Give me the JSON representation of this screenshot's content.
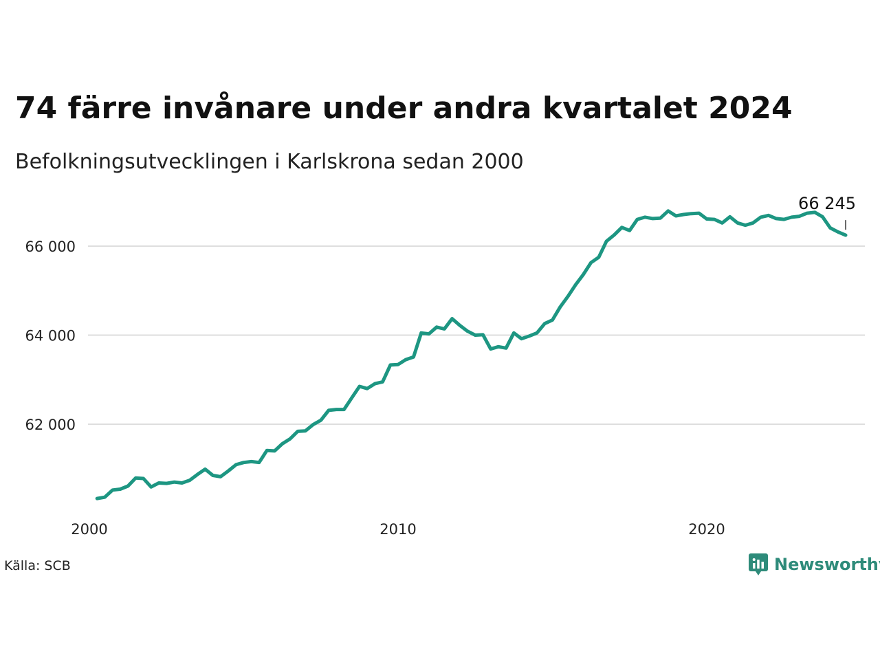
{
  "title": "74 färre invånare under andra kvartalet 2024",
  "subtitle": "Befolkningsutvecklingen i Karlskrona sedan 2000",
  "source": "Källa: SCB",
  "brand": {
    "name": "Newsworthy",
    "icon": "newsworthy-logo-icon",
    "color": "#2e8b7a"
  },
  "chart_data": {
    "type": "line",
    "title": "74 färre invånare under andra kvartalet 2024",
    "subtitle": "Befolkningsutvecklingen i Karlskrona sedan 2000",
    "xlabel": "",
    "ylabel": "",
    "x_ticks": [
      {
        "value": 2000,
        "label": "2000"
      },
      {
        "value": 2010,
        "label": "2010"
      },
      {
        "value": 2020,
        "label": "2020"
      }
    ],
    "y_ticks": [
      {
        "value": 62000,
        "label": "62 000"
      },
      {
        "value": 64000,
        "label": "64 000"
      },
      {
        "value": 66000,
        "label": "66 000"
      }
    ],
    "xlim": [
      2000,
      2025.2
    ],
    "ylim": [
      59800,
      67000
    ],
    "grid": "horizontal",
    "line_color": "#1d9682",
    "end_label": {
      "text": "66 245",
      "value": 66245
    },
    "series": [
      {
        "values": [
          [
            2000.25,
            60330
          ],
          [
            2000.5,
            60360
          ],
          [
            2000.75,
            60520
          ],
          [
            2001.0,
            60540
          ],
          [
            2001.25,
            60610
          ],
          [
            2001.5,
            60790
          ],
          [
            2001.75,
            60780
          ],
          [
            2002.0,
            60590
          ],
          [
            2002.25,
            60680
          ],
          [
            2002.5,
            60670
          ],
          [
            2002.75,
            60700
          ],
          [
            2003.0,
            60680
          ],
          [
            2003.25,
            60740
          ],
          [
            2003.5,
            60870
          ],
          [
            2003.75,
            60990
          ],
          [
            2004.0,
            60850
          ],
          [
            2004.25,
            60820
          ],
          [
            2004.5,
            60950
          ],
          [
            2004.75,
            61090
          ],
          [
            2005.0,
            61140
          ],
          [
            2005.25,
            61160
          ],
          [
            2005.5,
            61140
          ],
          [
            2005.75,
            61410
          ],
          [
            2006.0,
            61400
          ],
          [
            2006.25,
            61560
          ],
          [
            2006.5,
            61670
          ],
          [
            2006.75,
            61840
          ],
          [
            2007.0,
            61850
          ],
          [
            2007.25,
            61990
          ],
          [
            2007.5,
            62090
          ],
          [
            2007.75,
            62310
          ],
          [
            2008.0,
            62330
          ],
          [
            2008.25,
            62330
          ],
          [
            2008.5,
            62590
          ],
          [
            2008.75,
            62850
          ],
          [
            2009.0,
            62800
          ],
          [
            2009.25,
            62910
          ],
          [
            2009.5,
            62950
          ],
          [
            2009.75,
            63330
          ],
          [
            2010.0,
            63340
          ],
          [
            2010.25,
            63450
          ],
          [
            2010.5,
            63510
          ],
          [
            2010.75,
            64050
          ],
          [
            2011.0,
            64030
          ],
          [
            2011.25,
            64180
          ],
          [
            2011.5,
            64140
          ],
          [
            2011.75,
            64370
          ],
          [
            2012.0,
            64220
          ],
          [
            2012.25,
            64090
          ],
          [
            2012.5,
            64000
          ],
          [
            2012.75,
            64010
          ],
          [
            2013.0,
            63690
          ],
          [
            2013.25,
            63740
          ],
          [
            2013.5,
            63710
          ],
          [
            2013.75,
            64050
          ],
          [
            2014.0,
            63920
          ],
          [
            2014.25,
            63980
          ],
          [
            2014.5,
            64050
          ],
          [
            2014.75,
            64260
          ],
          [
            2015.0,
            64340
          ],
          [
            2015.25,
            64630
          ],
          [
            2015.5,
            64870
          ],
          [
            2015.75,
            65130
          ],
          [
            2016.0,
            65360
          ],
          [
            2016.25,
            65630
          ],
          [
            2016.5,
            65750
          ],
          [
            2016.75,
            66110
          ],
          [
            2017.0,
            66250
          ],
          [
            2017.25,
            66420
          ],
          [
            2017.5,
            66350
          ],
          [
            2017.75,
            66600
          ],
          [
            2018.0,
            66650
          ],
          [
            2018.25,
            66620
          ],
          [
            2018.5,
            66630
          ],
          [
            2018.75,
            66790
          ],
          [
            2019.0,
            66680
          ],
          [
            2019.25,
            66710
          ],
          [
            2019.5,
            66730
          ],
          [
            2019.75,
            66740
          ],
          [
            2020.0,
            66610
          ],
          [
            2020.25,
            66600
          ],
          [
            2020.5,
            66520
          ],
          [
            2020.75,
            66660
          ],
          [
            2021.0,
            66520
          ],
          [
            2021.25,
            66470
          ],
          [
            2021.5,
            66520
          ],
          [
            2021.75,
            66650
          ],
          [
            2022.0,
            66690
          ],
          [
            2022.25,
            66620
          ],
          [
            2022.5,
            66600
          ],
          [
            2022.75,
            66650
          ],
          [
            2023.0,
            66670
          ],
          [
            2023.25,
            66740
          ],
          [
            2023.5,
            66760
          ],
          [
            2023.75,
            66660
          ],
          [
            2024.0,
            66410
          ],
          [
            2024.25,
            66319
          ],
          [
            2024.5,
            66245
          ]
        ]
      }
    ]
  }
}
